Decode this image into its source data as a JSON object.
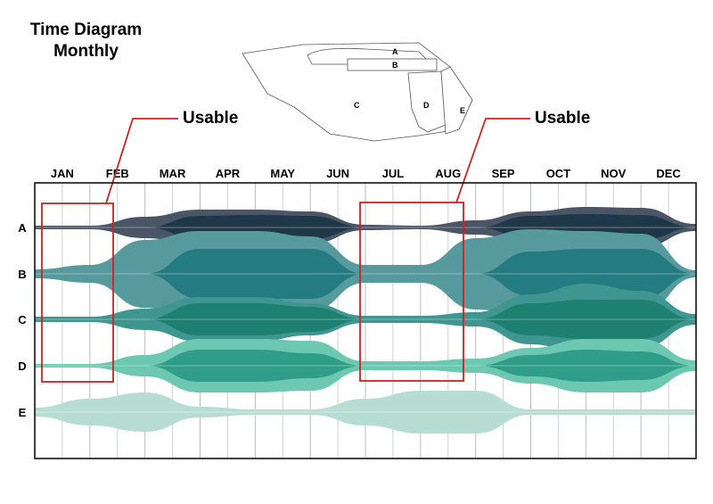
{
  "title_line1": "Time Diagram",
  "title_line2": "Monthly",
  "map_zones": [
    "A",
    "B",
    "C",
    "D",
    "E"
  ],
  "chart_data": {
    "type": "area",
    "subtype": "streamgraph",
    "categories": [
      "JAN",
      "FEB",
      "MAR",
      "APR",
      "MAY",
      "JUN",
      "JUL",
      "AUG",
      "SEP",
      "OCT",
      "NOV",
      "DEC"
    ],
    "rows": [
      "A",
      "B",
      "C",
      "D",
      "E"
    ],
    "grid": true,
    "series": [
      {
        "zone": "A",
        "layer": "outer",
        "color": "#4a5566",
        "half_widths": [
          2,
          2,
          12,
          20,
          20,
          18,
          3,
          2,
          8,
          18,
          23,
          22,
          4
        ]
      },
      {
        "zone": "A",
        "layer": "inner",
        "color": "#1f3849",
        "half_widths": [
          0,
          0,
          0,
          13,
          14,
          13,
          0,
          0,
          0,
          13,
          15,
          14,
          0
        ]
      },
      {
        "zone": "B",
        "layer": "outer",
        "color": "#569a9e",
        "half_widths": [
          5,
          10,
          38,
          48,
          48,
          42,
          10,
          10,
          40,
          50,
          48,
          45,
          4
        ]
      },
      {
        "zone": "B",
        "layer": "inner",
        "color": "#247b80",
        "half_widths": [
          0,
          0,
          0,
          28,
          28,
          28,
          0,
          0,
          0,
          25,
          28,
          28,
          0
        ]
      },
      {
        "zone": "C",
        "layer": "outer",
        "color": "#3f9590",
        "half_widths": [
          3,
          3,
          12,
          25,
          25,
          18,
          4,
          4,
          8,
          28,
          40,
          32,
          6
        ]
      },
      {
        "zone": "C",
        "layer": "inner",
        "color": "#1d8070",
        "half_widths": [
          0,
          0,
          0,
          18,
          18,
          14,
          0,
          0,
          0,
          18,
          22,
          22,
          0
        ]
      },
      {
        "zone": "D",
        "layer": "outer",
        "color": "#6cc8b0",
        "half_widths": [
          2,
          2,
          12,
          30,
          30,
          28,
          5,
          5,
          8,
          20,
          30,
          30,
          6
        ]
      },
      {
        "zone": "D",
        "layer": "inner",
        "color": "#2f9d88",
        "half_widths": [
          0,
          0,
          0,
          18,
          18,
          14,
          0,
          0,
          0,
          12,
          18,
          16,
          0
        ]
      },
      {
        "zone": "E",
        "layer": "outer",
        "color": "#b7ddd3",
        "half_widths": [
          5,
          15,
          22,
          6,
          3,
          3,
          15,
          24,
          24,
          3,
          3,
          3,
          3
        ]
      }
    ],
    "annotations": [
      {
        "label": "Usable",
        "span": [
          "JAN",
          "JAN"
        ],
        "rows": [
          "A",
          "D"
        ],
        "color": "#cc2222"
      },
      {
        "label": "Usable",
        "span": [
          "JUL",
          "AUG"
        ],
        "rows": [
          "A",
          "D"
        ],
        "color": "#cc2222"
      }
    ]
  }
}
